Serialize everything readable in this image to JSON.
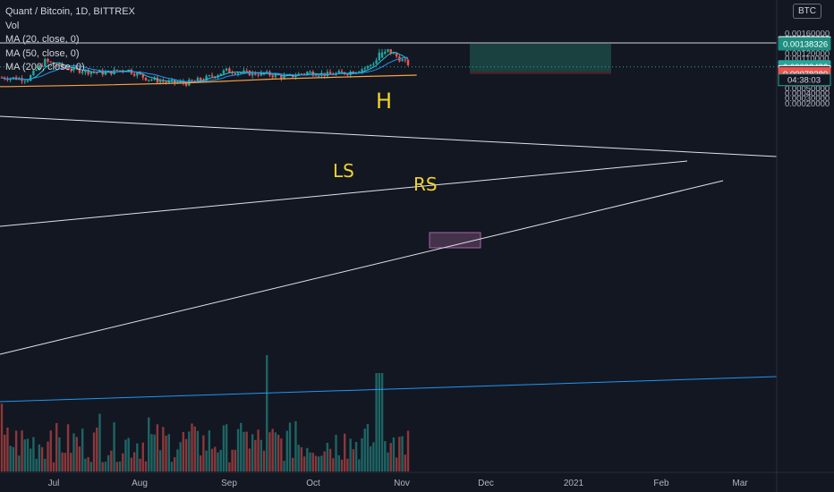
{
  "legend": {
    "title": "Quant / Bitcoin, 1D, BITTREX",
    "volume": "Vol",
    "ma20": "MA (20, close, 0)",
    "ma50": "MA (50, close, 0)",
    "ma200": "MA (200, close, 0)"
  },
  "currency_badge": "BTC",
  "annotations": {
    "head": "H",
    "left_shoulder": "LS",
    "right_shoulder": "RS"
  },
  "colors": {
    "background": "#131722",
    "up": "#26a69a",
    "down": "#ef5350",
    "ma20": "#26c6da",
    "ma50": "#2196f3",
    "ma200": "#f7a145",
    "target_zone": "#1f4f4b",
    "stop_zone": "#5a2428",
    "annotation": "#f0d230"
  },
  "chart_data": {
    "type": "candlestick",
    "symbol": "Quant / Bitcoin",
    "interval": "1D",
    "exchange": "BITTREX",
    "ylim": [
      0.0001,
      0.0016
    ],
    "grid": false,
    "x_ticks": [
      "Jul",
      "Aug",
      "Sep",
      "Oct",
      "Nov",
      "Dec",
      "2021",
      "Feb",
      "Mar"
    ],
    "y_ticks": [
      "0.00150000",
      "0.00130000",
      "0.00120000",
      "0.00110000",
      "0.00100000",
      "0.00070000",
      "0.00060000",
      "0.00050000",
      "0.00040000",
      "0.00030000",
      "0.00020000"
    ],
    "y_ticks_partial": [
      "0.00160000"
    ],
    "price_labels": [
      {
        "text": "0.00140144",
        "value": 0.00140144,
        "style": "line"
      },
      {
        "text": "0.00138326",
        "value": 0.00138326,
        "style": "target"
      },
      {
        "text": "0.00092486",
        "value": 0.00092486,
        "style": "last"
      },
      {
        "text": "0.00082416",
        "value": 0.00082416,
        "style": "entry"
      },
      {
        "text": "0.00078280",
        "value": 0.0007828,
        "style": "stop"
      }
    ],
    "countdown": "04:38:03",
    "price_series": [
      {
        "t": "2020-06-15",
        "close": 0.00071
      },
      {
        "t": "2020-06-22",
        "close": 0.00068
      },
      {
        "t": "2020-06-28",
        "close": 0.00104
      },
      {
        "t": "2020-07-05",
        "close": 0.0009
      },
      {
        "t": "2020-07-12",
        "close": 0.00084
      },
      {
        "t": "2020-07-19",
        "close": 0.0008
      },
      {
        "t": "2020-07-26",
        "close": 0.00088
      },
      {
        "t": "2020-08-02",
        "close": 0.0007
      },
      {
        "t": "2020-08-09",
        "close": 0.00062
      },
      {
        "t": "2020-08-16",
        "close": 0.0006
      },
      {
        "t": "2020-08-23",
        "close": 0.0007
      },
      {
        "t": "2020-08-30",
        "close": 0.00085
      },
      {
        "t": "2020-09-06",
        "close": 0.0008
      },
      {
        "t": "2020-09-13",
        "close": 0.00078
      },
      {
        "t": "2020-09-20",
        "close": 0.00072
      },
      {
        "t": "2020-09-27",
        "close": 0.00082
      },
      {
        "t": "2020-10-04",
        "close": 0.00077
      },
      {
        "t": "2020-10-11",
        "close": 0.00081
      },
      {
        "t": "2020-10-18",
        "close": 0.00092
      },
      {
        "t": "2020-10-25",
        "close": 0.00125
      },
      {
        "t": "2020-10-31",
        "close": 0.00101
      },
      {
        "t": "2020-11-04",
        "close": 0.00092
      }
    ],
    "ma200_series": [
      {
        "t": "2020-06-15",
        "value": 0.00053
      },
      {
        "t": "2020-07-15",
        "value": 0.00056
      },
      {
        "t": "2020-08-15",
        "value": 0.0006
      },
      {
        "t": "2020-09-15",
        "value": 0.00068
      },
      {
        "t": "2020-10-15",
        "value": 0.00073
      },
      {
        "t": "2020-11-04",
        "value": 0.00076
      }
    ],
    "position": {
      "target": 0.00138326,
      "entry": 0.00082416,
      "stop": 0.0007828
    }
  }
}
